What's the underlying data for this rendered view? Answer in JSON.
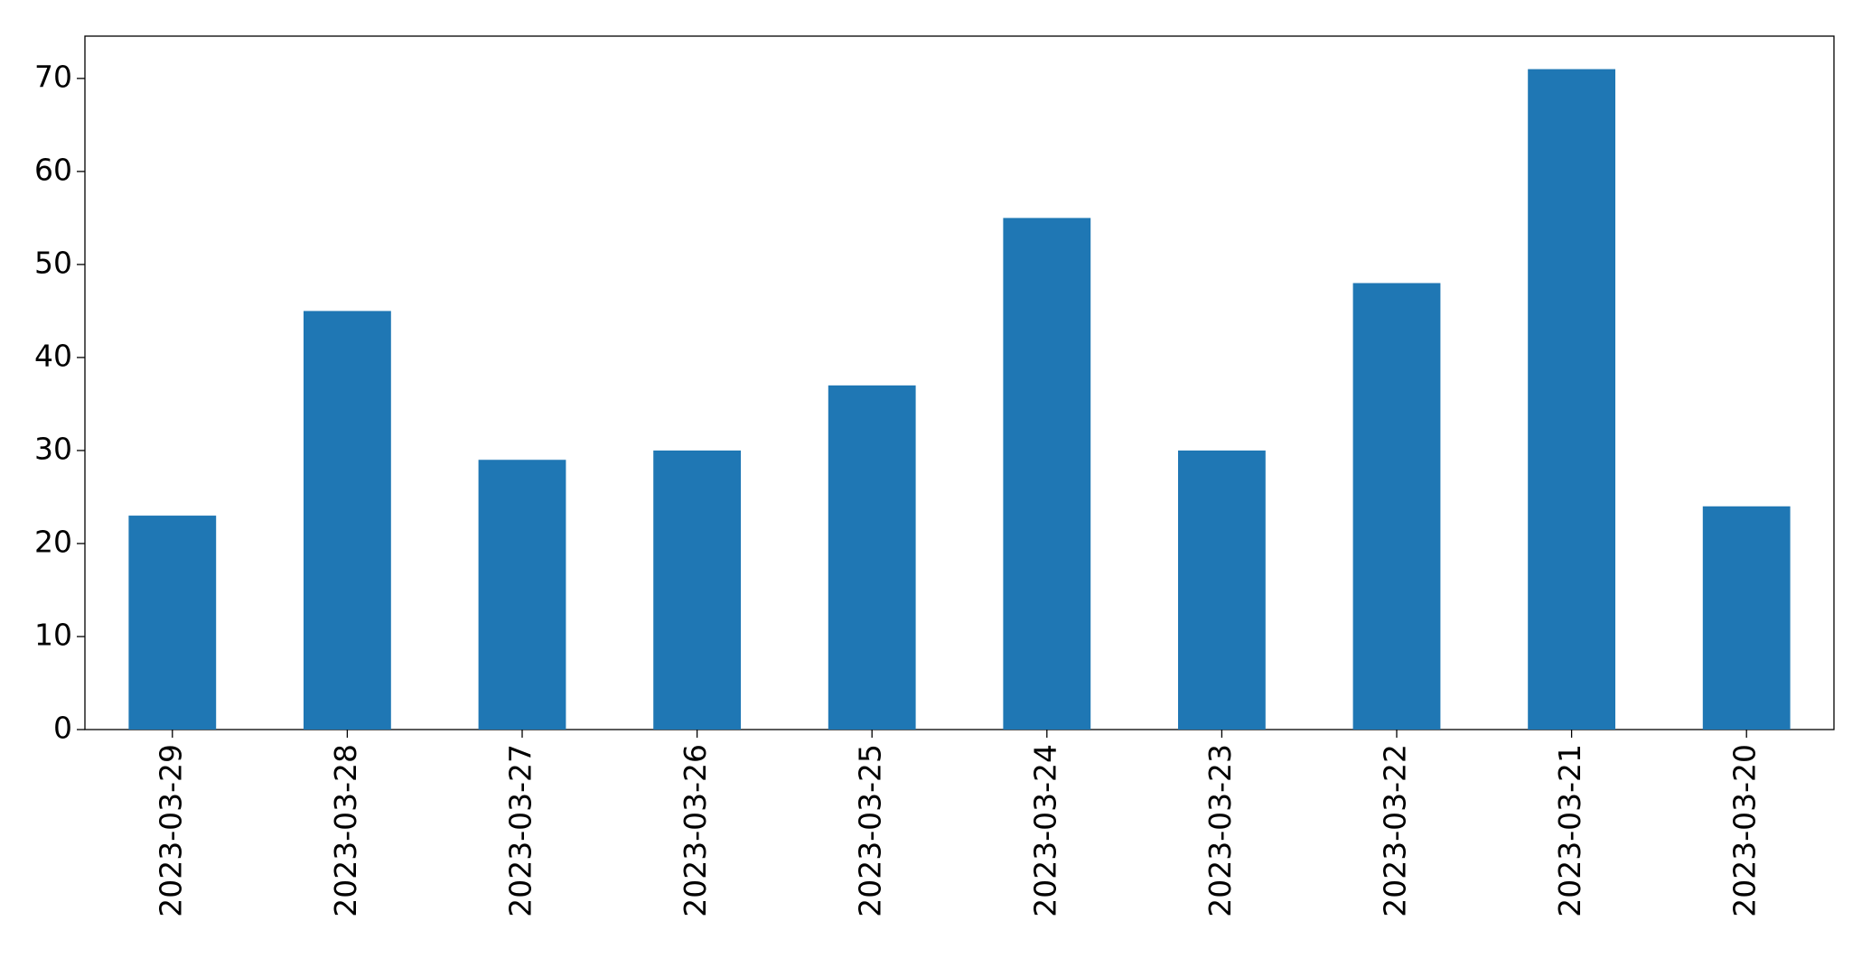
{
  "chart_data": {
    "type": "bar",
    "categories": [
      "2023-03-29",
      "2023-03-28",
      "2023-03-27",
      "2023-03-26",
      "2023-03-25",
      "2023-03-24",
      "2023-03-23",
      "2023-03-22",
      "2023-03-21",
      "2023-03-20"
    ],
    "values": [
      23,
      45,
      29,
      30,
      37,
      55,
      30,
      48,
      71,
      24
    ],
    "color": "#1f77b4",
    "ylim": [
      0,
      74.55
    ],
    "yticks": [
      0,
      10,
      20,
      30,
      40,
      50,
      60,
      70
    ],
    "grid": false
  }
}
